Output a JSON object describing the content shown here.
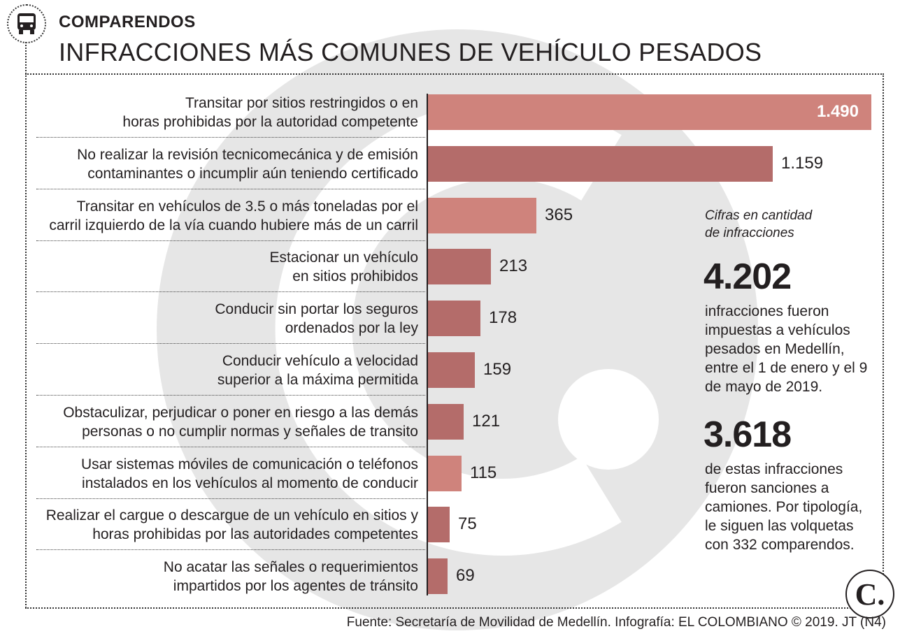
{
  "header": {
    "kicker": "COMPARENDOS",
    "title": "INFRACCIONES MÁS COMUNES DE VEHÍCULO PESADOS"
  },
  "chart_data": {
    "type": "bar",
    "orientation": "horizontal",
    "categories": [
      [
        "Transitar por sitios restringidos o en",
        "horas prohibidas por la autoridad competente"
      ],
      [
        "No realizar la revisión tecnicomecánica y de emisión",
        "contaminantes o incumplir aún teniendo certificado"
      ],
      [
        "Transitar en vehículos de 3.5 o más toneladas por el",
        "carril izquierdo de la vía cuando hubiere más de un carril"
      ],
      [
        "Estacionar un vehículo",
        "en sitios prohibidos"
      ],
      [
        "Conducir sin portar los seguros",
        "ordenados por la ley"
      ],
      [
        "Conducir vehículo a velocidad",
        "superior a la máxima permitida"
      ],
      [
        "Obstaculizar, perjudicar o poner en riesgo a las demás",
        "personas o no cumplir normas y señales de transito"
      ],
      [
        "Usar sistemas móviles de comunicación o teléfonos",
        "instalados en los vehículos al momento de conducir"
      ],
      [
        "Realizar el cargue o descargue de un vehículo en sitios y",
        "horas prohibidas por las autoridades competentes"
      ],
      [
        "No acatar las señales o requerimientos",
        "impartidos por los agentes de tránsito"
      ]
    ],
    "values": [
      1490,
      1159,
      365,
      213,
      178,
      159,
      121,
      115,
      75,
      69
    ],
    "value_labels": [
      "1.490",
      "1.159",
      "365",
      "213",
      "178",
      "159",
      "121",
      "115",
      "75",
      "69"
    ],
    "bar_color": "#b46c6a",
    "highlight_color": "#cf837c",
    "xlim": [
      0,
      1490
    ],
    "grid": false,
    "title": "",
    "xlabel": "",
    "ylabel": ""
  },
  "sidebar": {
    "note_lines": [
      "Cifras en cantidad",
      "de infracciones"
    ],
    "stat1": {
      "value": "4.202",
      "lines": [
        "infracciones fueron",
        "impuestas a vehículos",
        "pesados en Medellín,",
        "entre el 1 de enero y el 9",
        "de mayo de 2019."
      ]
    },
    "stat2": {
      "value": "3.618",
      "lines": [
        "de estas infracciones",
        "fueron sanciones a",
        "camiones. Por tipología,",
        "le siguen las volquetas",
        "con 332 comparendos."
      ]
    }
  },
  "logo": {
    "letter": "C."
  },
  "footer": {
    "source": "Fuente: Secretaría de Movilidad de Medellín. Infografía: EL COLOMBIANO © 2019. JT (N4)"
  },
  "colors": {
    "text": "#231f20",
    "watermark": "#e6e6e6"
  }
}
